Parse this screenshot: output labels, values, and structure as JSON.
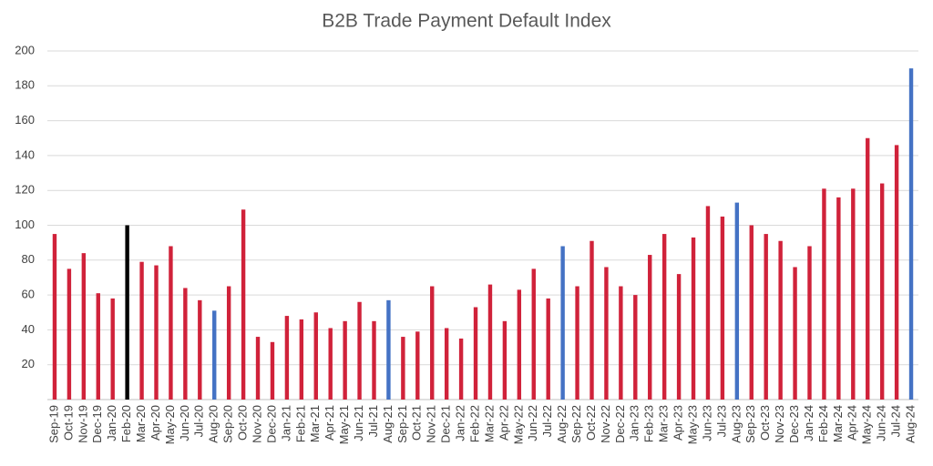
{
  "chart_data": {
    "type": "bar",
    "title": "B2B Trade Payment Default Index",
    "categories": [
      "Sep-19",
      "Oct-19",
      "Nov-19",
      "Dec-19",
      "Jan-20",
      "Feb-20",
      "Mar-20",
      "Apr-20",
      "May-20",
      "Jun-20",
      "Jul-20",
      "Aug-20",
      "Sep-20",
      "Oct-20",
      "Nov-20",
      "Dec-20",
      "Jan-21",
      "Feb-21",
      "Mar-21",
      "Apr-21",
      "May-21",
      "Jun-21",
      "Jul-21",
      "Aug-21",
      "Sep-21",
      "Oct-21",
      "Nov-21",
      "Dec-21",
      "Jan-22",
      "Feb-22",
      "Mar-22",
      "Apr-22",
      "May-22",
      "Jun-22",
      "Jul-22",
      "Aug-22",
      "Sep-22",
      "Oct-22",
      "Nov-22",
      "Dec-22",
      "Jan-23",
      "Feb-23",
      "Mar-23",
      "Apr-23",
      "May-23",
      "Jun-23",
      "Jul-23",
      "Aug-23",
      "Sep-23",
      "Oct-23",
      "Nov-23",
      "Dec-23",
      "Jan-24",
      "Feb-24",
      "Mar-24",
      "Apr-24",
      "May-24",
      "Jun-24",
      "Jul-24",
      "Aug-24"
    ],
    "values": [
      95,
      75,
      84,
      61,
      58,
      100,
      79,
      77,
      88,
      64,
      57,
      51,
      65,
      109,
      36,
      33,
      48,
      46,
      50,
      41,
      45,
      56,
      45,
      57,
      36,
      39,
      65,
      41,
      35,
      53,
      66,
      45,
      63,
      75,
      58,
      88,
      65,
      91,
      76,
      65,
      60,
      83,
      95,
      72,
      93,
      111,
      105,
      113,
      100,
      95,
      91,
      76,
      88,
      121,
      116,
      121,
      150,
      124,
      146,
      190
    ],
    "colors": [
      "#d0223a",
      "#d0223a",
      "#d0223a",
      "#d0223a",
      "#d0223a",
      "#000000",
      "#d0223a",
      "#d0223a",
      "#d0223a",
      "#d0223a",
      "#d0223a",
      "#4472c4",
      "#d0223a",
      "#d0223a",
      "#d0223a",
      "#d0223a",
      "#d0223a",
      "#d0223a",
      "#d0223a",
      "#d0223a",
      "#d0223a",
      "#d0223a",
      "#d0223a",
      "#4472c4",
      "#d0223a",
      "#d0223a",
      "#d0223a",
      "#d0223a",
      "#d0223a",
      "#d0223a",
      "#d0223a",
      "#d0223a",
      "#d0223a",
      "#d0223a",
      "#d0223a",
      "#4472c4",
      "#d0223a",
      "#d0223a",
      "#d0223a",
      "#d0223a",
      "#d0223a",
      "#d0223a",
      "#d0223a",
      "#d0223a",
      "#d0223a",
      "#d0223a",
      "#d0223a",
      "#4472c4",
      "#d0223a",
      "#d0223a",
      "#d0223a",
      "#d0223a",
      "#d0223a",
      "#d0223a",
      "#d0223a",
      "#d0223a",
      "#d0223a",
      "#d0223a",
      "#d0223a",
      "#4472c4"
    ],
    "ylim": [
      0,
      200
    ],
    "yticks": [
      20,
      40,
      60,
      80,
      100,
      120,
      140,
      160,
      180,
      200
    ],
    "grid": true
  }
}
